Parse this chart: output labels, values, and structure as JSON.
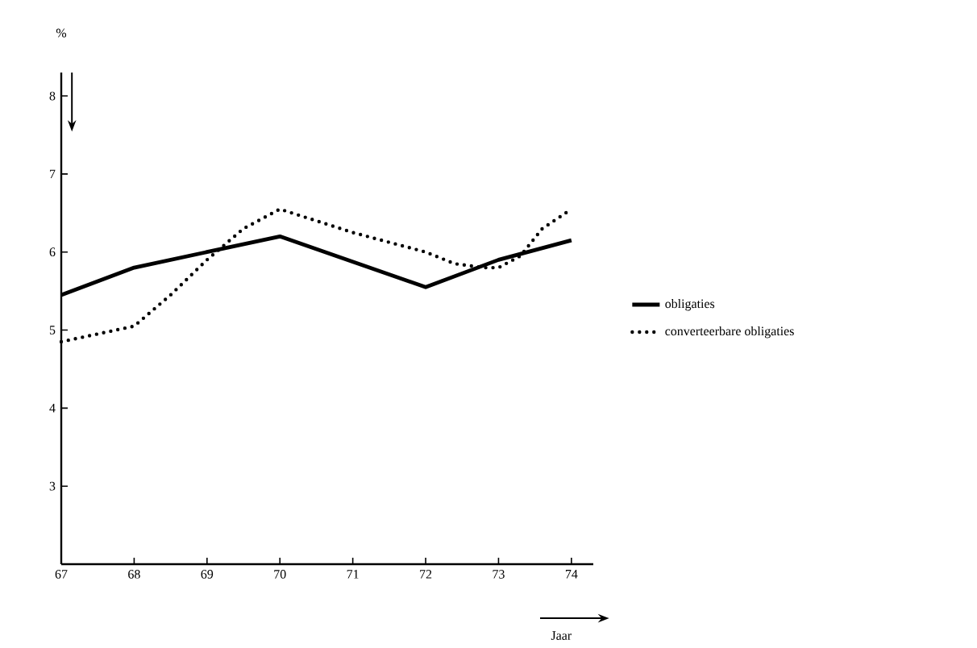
{
  "chart_data": {
    "type": "line",
    "ylabel": "%",
    "xlabel": "Jaar",
    "xlim": [
      67,
      74.3
    ],
    "xticks": [
      67,
      68,
      69,
      70,
      71,
      72,
      73,
      74
    ],
    "ylim": [
      2,
      8.3
    ],
    "yticks": [
      3,
      4,
      5,
      6,
      7,
      8
    ],
    "legend": "right",
    "grid": false,
    "series": [
      {
        "name": "obligaties",
        "color": "#000000",
        "line_style": "solid",
        "x": [
          67,
          68,
          69,
          70,
          72,
          73,
          74
        ],
        "values": [
          5.45,
          5.8,
          6.0,
          6.2,
          5.55,
          5.9,
          6.15
        ]
      },
      {
        "name": "converteerbare obligaties",
        "color": "#000000",
        "line_style": "dotted",
        "x": [
          67,
          67.5,
          68,
          68.5,
          69,
          69.5,
          70,
          71,
          72,
          72.4,
          72.8,
          73,
          73.3,
          73.6,
          74
        ],
        "values": [
          4.85,
          4.95,
          5.05,
          5.45,
          5.9,
          6.3,
          6.55,
          6.25,
          6.0,
          5.85,
          5.8,
          5.8,
          5.95,
          6.3,
          6.55
        ]
      }
    ]
  }
}
